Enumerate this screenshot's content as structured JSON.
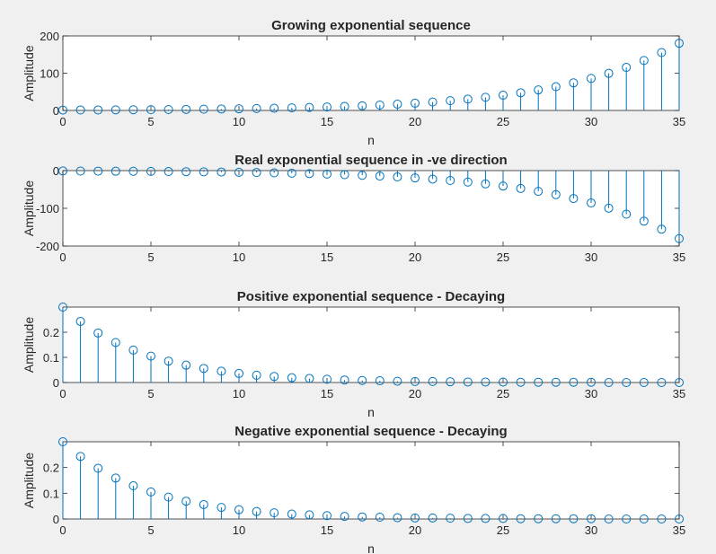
{
  "chart_data": [
    {
      "type": "stem",
      "title": "Growing exponential sequence",
      "xlabel": "n",
      "ylabel": "Amplitude",
      "xlim": [
        0,
        35
      ],
      "ylim": [
        0,
        200
      ],
      "xticks": [
        0,
        5,
        10,
        15,
        20,
        25,
        30,
        35
      ],
      "yticks": [
        0,
        100,
        200
      ],
      "x": [
        0,
        1,
        2,
        3,
        4,
        5,
        6,
        7,
        8,
        9,
        10,
        11,
        12,
        13,
        14,
        15,
        16,
        17,
        18,
        19,
        20,
        21,
        22,
        23,
        24,
        25,
        26,
        27,
        28,
        29,
        30,
        31,
        32,
        33,
        34,
        35
      ],
      "values": [
        1.0,
        1.16,
        1.35,
        1.56,
        1.81,
        2.1,
        2.44,
        2.83,
        3.28,
        3.8,
        4.41,
        5.12,
        5.94,
        6.89,
        7.99,
        9.27,
        10.75,
        12.47,
        14.46,
        16.78,
        19.46,
        22.57,
        26.19,
        30.38,
        35.24,
        40.87,
        47.41,
        55.0,
        63.8,
        74.0,
        85.85,
        99.58,
        115.52,
        134.0,
        155.45,
        180.32
      ]
    },
    {
      "type": "stem",
      "title": "Real exponential sequence in -ve direction",
      "xlabel": "",
      "ylabel": "Amplitude",
      "xlim": [
        0,
        35
      ],
      "ylim": [
        -200,
        0
      ],
      "xticks": [
        0,
        5,
        10,
        15,
        20,
        25,
        30,
        35
      ],
      "yticks": [
        0,
        -100,
        -200
      ],
      "x": [
        0,
        1,
        2,
        3,
        4,
        5,
        6,
        7,
        8,
        9,
        10,
        11,
        12,
        13,
        14,
        15,
        16,
        17,
        18,
        19,
        20,
        21,
        22,
        23,
        24,
        25,
        26,
        27,
        28,
        29,
        30,
        31,
        32,
        33,
        34,
        35
      ],
      "values": [
        -1.0,
        -1.16,
        -1.35,
        -1.56,
        -1.81,
        -2.1,
        -2.44,
        -2.83,
        -3.28,
        -3.8,
        -4.41,
        -5.12,
        -5.94,
        -6.89,
        -7.99,
        -9.27,
        -10.75,
        -12.47,
        -14.46,
        -16.78,
        -19.46,
        -22.57,
        -26.19,
        -30.38,
        -35.24,
        -40.87,
        -47.41,
        -55.0,
        -63.8,
        -74.0,
        -85.85,
        -99.58,
        -115.52,
        -134.0,
        -155.45,
        -180.32
      ]
    },
    {
      "type": "stem",
      "title": "Positive exponential sequence - Decaying",
      "xlabel": "n",
      "ylabel": "Amplitude",
      "xlim": [
        0,
        35
      ],
      "ylim": [
        0,
        0.3
      ],
      "xticks": [
        0,
        5,
        10,
        15,
        20,
        25,
        30,
        35
      ],
      "yticks": [
        0,
        0.1,
        0.2
      ],
      "x": [
        0,
        1,
        2,
        3,
        4,
        5,
        6,
        7,
        8,
        9,
        10,
        11,
        12,
        13,
        14,
        15,
        16,
        17,
        18,
        19,
        20,
        21,
        22,
        23,
        24,
        25,
        26,
        27,
        28,
        29,
        30,
        31,
        32,
        33,
        34,
        35
      ],
      "values": [
        0.3,
        0.243,
        0.197,
        0.159,
        0.129,
        0.105,
        0.085,
        0.069,
        0.056,
        0.045,
        0.036,
        0.029,
        0.024,
        0.019,
        0.016,
        0.013,
        0.01,
        0.008,
        0.007,
        0.005,
        0.004,
        0.004,
        0.003,
        0.002,
        0.002,
        0.002,
        0.001,
        0.001,
        0.001,
        0.001,
        0.001,
        0.0,
        0.0,
        0.0,
        0.0,
        0.0
      ]
    },
    {
      "type": "stem",
      "title": "Negative exponential sequence - Decaying",
      "xlabel": "n",
      "ylabel": "Amplitude",
      "xlim": [
        0,
        35
      ],
      "ylim": [
        0,
        0.3
      ],
      "xticks": [
        0,
        5,
        10,
        15,
        20,
        25,
        30,
        35
      ],
      "yticks": [
        0,
        0.1,
        0.2
      ],
      "x": [
        0,
        1,
        2,
        3,
        4,
        5,
        6,
        7,
        8,
        9,
        10,
        11,
        12,
        13,
        14,
        15,
        16,
        17,
        18,
        19,
        20,
        21,
        22,
        23,
        24,
        25,
        26,
        27,
        28,
        29,
        30,
        31,
        32,
        33,
        34,
        35
      ],
      "values": [
        0.3,
        0.243,
        0.197,
        0.159,
        0.129,
        0.105,
        0.085,
        0.069,
        0.056,
        0.045,
        0.036,
        0.029,
        0.024,
        0.019,
        0.016,
        0.013,
        0.01,
        0.008,
        0.007,
        0.005,
        0.004,
        0.004,
        0.003,
        0.002,
        0.002,
        0.002,
        0.001,
        0.001,
        0.001,
        0.001,
        0.001,
        0.0,
        0.0,
        0.0,
        0.0,
        0.0
      ]
    }
  ],
  "style": {
    "background": "#f0f0f0",
    "axes_background": "#ffffff",
    "axis_color": "#262626",
    "stem_color": "#0072bd"
  }
}
